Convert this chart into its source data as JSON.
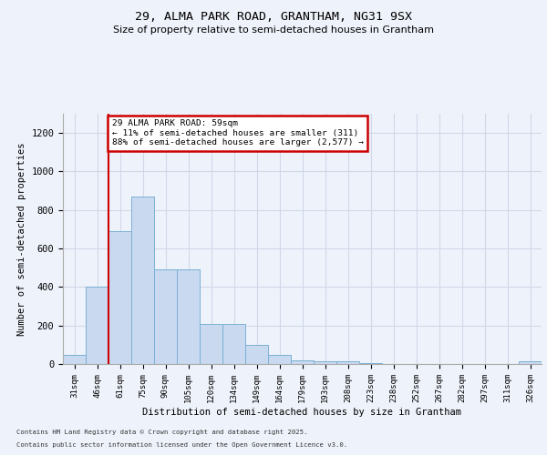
{
  "title_line1": "29, ALMA PARK ROAD, GRANTHAM, NG31 9SX",
  "title_line2": "Size of property relative to semi-detached houses in Grantham",
  "xlabel": "Distribution of semi-detached houses by size in Grantham",
  "ylabel": "Number of semi-detached properties",
  "categories": [
    "31sqm",
    "46sqm",
    "61sqm",
    "75sqm",
    "90sqm",
    "105sqm",
    "120sqm",
    "134sqm",
    "149sqm",
    "164sqm",
    "179sqm",
    "193sqm",
    "208sqm",
    "223sqm",
    "238sqm",
    "252sqm",
    "267sqm",
    "282sqm",
    "297sqm",
    "311sqm",
    "326sqm"
  ],
  "values": [
    45,
    400,
    690,
    870,
    490,
    490,
    210,
    210,
    100,
    45,
    20,
    15,
    15,
    5,
    2,
    2,
    2,
    2,
    1,
    1,
    15
  ],
  "bar_color": "#c9d9f0",
  "bar_edge_color": "#7ab0d4",
  "vline_color": "#cc0000",
  "annotation_box_color": "#cc0000",
  "ylim": [
    0,
    1300
  ],
  "yticks": [
    0,
    200,
    400,
    600,
    800,
    1000,
    1200
  ],
  "background_color": "#eef2fa",
  "grid_color": "#d0d8e8",
  "footer_line1": "Contains HM Land Registry data © Crown copyright and database right 2025.",
  "footer_line2": "Contains public sector information licensed under the Open Government Licence v3.0.",
  "pct_smaller": 11,
  "pct_larger": 88,
  "count_smaller": 311,
  "count_larger": 2577,
  "property_label": "29 ALMA PARK ROAD: 59sqm"
}
